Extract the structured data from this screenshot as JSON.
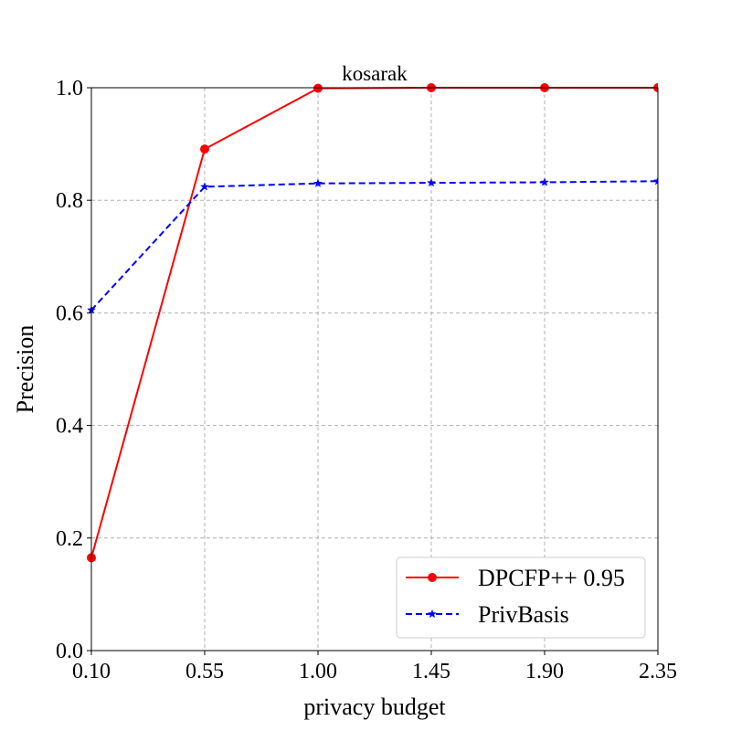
{
  "chart_data": {
    "type": "line",
    "title": "kosarak",
    "xlabel": "privacy budget",
    "ylabel": "Precision",
    "x": [
      0.1,
      0.55,
      1.0,
      1.45,
      1.9,
      2.35
    ],
    "x_tick_labels": [
      "0.10",
      "0.55",
      "1.00",
      "1.45",
      "1.90",
      "2.35"
    ],
    "y_tick_labels": [
      "0.0",
      "0.2",
      "0.4",
      "0.6",
      "0.8",
      "1.0"
    ],
    "y_ticks": [
      0.0,
      0.2,
      0.4,
      0.6,
      0.8,
      1.0
    ],
    "xlim": [
      0.1,
      2.35
    ],
    "ylim": [
      0.0,
      1.0
    ],
    "grid": true,
    "legend_position": "lower-right",
    "series": [
      {
        "name": "DPCFP++ 0.95",
        "values": [
          0.165,
          0.891,
          0.999,
          1.0,
          1.0,
          1.0
        ],
        "color": "#ff0000",
        "line_style": "solid",
        "marker": "circle"
      },
      {
        "name": "PrivBasis",
        "values": [
          0.605,
          0.824,
          0.83,
          0.831,
          0.832,
          0.834
        ],
        "color": "#0000ff",
        "line_style": "dashed",
        "marker": "star"
      }
    ]
  }
}
